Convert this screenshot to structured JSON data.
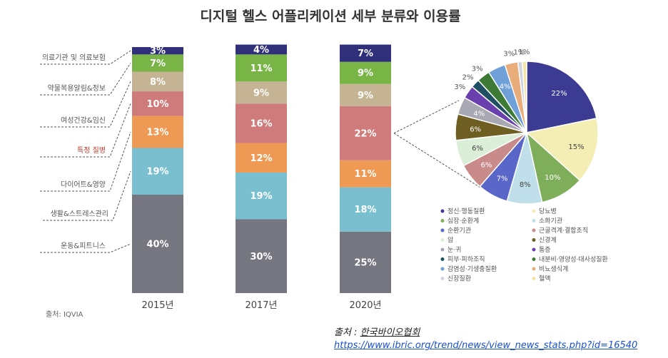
{
  "chart_data": [
    {
      "type": "bar",
      "stacked": true,
      "title": "디지털 헬스 어플리케이션 세부 분류와 이용률",
      "categories": [
        "2015년",
        "2017년",
        "2020년"
      ],
      "series": [
        {
          "name": "운동&피트니스",
          "color": "#767680",
          "values": [
            40,
            30,
            25
          ]
        },
        {
          "name": "생활&스트레스관리",
          "color": "#79bfcf",
          "values": [
            19,
            19,
            18
          ]
        },
        {
          "name": "다이어트&영양",
          "color": "#ee9a55",
          "values": [
            13,
            12,
            11
          ]
        },
        {
          "name": "특정 질병",
          "color": "#cf7b7b",
          "values": [
            10,
            16,
            22
          ]
        },
        {
          "name": "여성건강&임신",
          "color": "#c5b493",
          "values": [
            8,
            9,
            9
          ]
        },
        {
          "name": "약물복용알림&정보",
          "color": "#78b446",
          "values": [
            7,
            11,
            9
          ]
        },
        {
          "name": "의료기관 및 의료보험",
          "color": "#2f2f7a",
          "values": [
            3,
            4,
            7
          ]
        }
      ],
      "value_labels": [
        [
          "40%",
          "30%",
          "25%"
        ],
        [
          "19%",
          "19%",
          "18%"
        ],
        [
          "13%",
          "12%",
          "11%"
        ],
        [
          "10%",
          "16%",
          "22%"
        ],
        [
          "8%",
          "9%",
          "9%"
        ],
        [
          "7%",
          "11%",
          "9%"
        ],
        [
          "3%",
          "4%",
          "7%"
        ]
      ],
      "highlighted_category": "특정 질병",
      "source_note": "출처: IQVIA"
    },
    {
      "type": "pie",
      "description_of": "2020년 특정 질병 22%",
      "slices": [
        {
          "name": "정신·행동질환",
          "value": 22,
          "label": "22%",
          "color": "#3b3b94"
        },
        {
          "name": "당뇨병",
          "value": 15,
          "label": "15%",
          "color": "#f4eeb5"
        },
        {
          "name": "심장·순환계",
          "value": 10,
          "label": "10%",
          "color": "#7fae5a"
        },
        {
          "name": "소화기관",
          "value": 8,
          "label": "8%",
          "color": "#bfe0ea"
        },
        {
          "name": "순환기관",
          "value": 7,
          "label": "7%",
          "color": "#5a67c9"
        },
        {
          "name": "근골격계·결합조직",
          "value": 6,
          "label": "6%",
          "color": "#c98a8a"
        },
        {
          "name": "암",
          "value": 6,
          "label": "6%",
          "color": "#dbeed8"
        },
        {
          "name": "신경계",
          "value": 6,
          "label": "6%",
          "color": "#6e5e22"
        },
        {
          "name": "눈·귀",
          "value": 4,
          "label": "4%",
          "color": "#a8a8b3"
        },
        {
          "name": "통증",
          "value": 3,
          "label": "3%",
          "color": "#6a3fae"
        },
        {
          "name": "피부·피하조직",
          "value": 2,
          "label": "2%",
          "color": "#1f4f62"
        },
        {
          "name": "내분비·영양성·대사성질환",
          "value": 3,
          "label": "3%",
          "color": "#3d7a35"
        },
        {
          "name": "감염성·기생충질환",
          "value": 4,
          "label": "4%",
          "color": "#6fa0d8"
        },
        {
          "name": "비뇨생식계",
          "value": 3,
          "label": "3%",
          "color": "#e8ad7a"
        },
        {
          "name": "신장질환",
          "value": 1,
          "label": "1%",
          "color": "#cfd3e0"
        },
        {
          "name": "혈액",
          "value": 1,
          "label": "1%",
          "color": "#f3e4a6"
        }
      ]
    }
  ],
  "credit": {
    "source_label": "출처 : ",
    "source_name": "한국바이오협회",
    "url": "https://www.ibric.org/trend/news/view_news_stats.php?id=16540"
  }
}
